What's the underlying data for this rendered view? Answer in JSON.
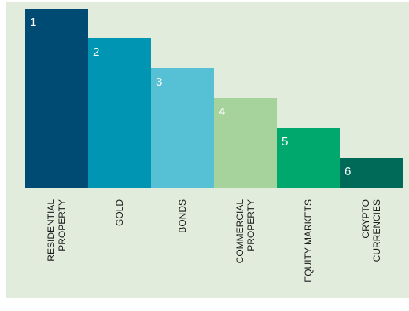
{
  "chart_data": {
    "type": "bar",
    "title": "",
    "xlabel": "",
    "ylabel": "",
    "ylim": [
      0,
      6
    ],
    "grid": false,
    "legend": "none",
    "categories": [
      [
        "RESIDENTIAL",
        "PROPERTY"
      ],
      [
        "GOLD"
      ],
      [
        "BONDS"
      ],
      [
        "COMMERCIAL",
        "PROPERTY"
      ],
      [
        "EQUITY MARKETS"
      ],
      [
        "CRYPTO",
        "CURRENCIES"
      ]
    ],
    "values": [
      6,
      5,
      4,
      3,
      2,
      1
    ],
    "rank_labels": [
      "1",
      "2",
      "3",
      "4",
      "5",
      "6"
    ],
    "colors": [
      "#004b73",
      "#0095b3",
      "#56c1d5",
      "#a6d39c",
      "#00a86e",
      "#006a58"
    ],
    "background": "#e2ecdd"
  }
}
